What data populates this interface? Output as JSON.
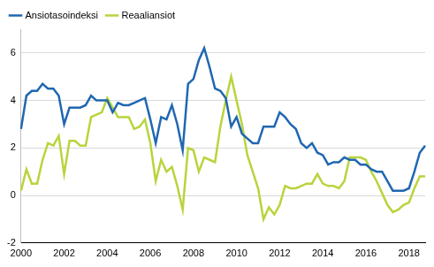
{
  "chart_data": {
    "type": "line",
    "categories": [
      "2000",
      null,
      null,
      null,
      null,
      null,
      null,
      null,
      "2002",
      null,
      null,
      null,
      null,
      null,
      null,
      null,
      "2004",
      null,
      null,
      null,
      null,
      null,
      null,
      null,
      "2006",
      null,
      null,
      null,
      null,
      null,
      null,
      null,
      "2008",
      null,
      null,
      null,
      null,
      null,
      null,
      null,
      "2010",
      null,
      null,
      null,
      null,
      null,
      null,
      null,
      "2012",
      null,
      null,
      null,
      null,
      null,
      null,
      null,
      "2014",
      null,
      null,
      null,
      null,
      null,
      null,
      null,
      "2016",
      null,
      null,
      null,
      null,
      null,
      null,
      null,
      "2018",
      null,
      null,
      null
    ],
    "series": [
      {
        "name": "Ansiotasoindeksi",
        "color": "#1f67b1",
        "values": [
          2.8,
          4.2,
          4.4,
          4.4,
          4.7,
          4.5,
          4.5,
          4.2,
          3.0,
          3.7,
          3.7,
          3.7,
          3.8,
          4.2,
          4.0,
          4.0,
          4.0,
          3.5,
          3.9,
          3.8,
          3.8,
          3.9,
          4.0,
          4.1,
          3.2,
          2.2,
          3.3,
          3.2,
          3.8,
          3.0,
          1.9,
          4.7,
          4.9,
          5.7,
          6.2,
          5.4,
          4.5,
          4.4,
          4.1,
          2.9,
          3.3,
          2.6,
          2.4,
          2.2,
          2.2,
          2.9,
          2.9,
          2.9,
          3.5,
          3.3,
          3.0,
          2.8,
          2.2,
          2.0,
          2.2,
          1.8,
          1.7,
          1.3,
          1.4,
          1.4,
          1.6,
          1.5,
          1.5,
          1.3,
          1.3,
          1.1,
          1.0,
          1.0,
          0.6,
          0.2,
          0.2,
          0.2,
          0.3,
          1.0,
          1.8,
          2.1
        ]
      },
      {
        "name": "Reaaliansiot",
        "color": "#b8d43c",
        "values": [
          0.2,
          1.1,
          0.5,
          0.5,
          1.5,
          2.2,
          2.1,
          2.5,
          0.9,
          2.3,
          2.3,
          2.1,
          2.1,
          3.3,
          3.4,
          3.5,
          4.1,
          3.7,
          3.3,
          3.3,
          3.3,
          2.8,
          2.9,
          3.2,
          2.2,
          0.6,
          1.5,
          1.0,
          1.2,
          0.4,
          -0.6,
          2.0,
          1.9,
          1.0,
          1.6,
          1.5,
          1.4,
          2.9,
          4.0,
          5.0,
          4.0,
          3.0,
          1.7,
          1.0,
          0.3,
          -1.0,
          -0.5,
          -0.8,
          -0.4,
          0.4,
          0.3,
          0.3,
          0.4,
          0.5,
          0.5,
          0.9,
          0.5,
          0.4,
          0.4,
          0.3,
          0.6,
          1.6,
          1.6,
          1.6,
          1.5,
          1.0,
          0.6,
          0.1,
          -0.4,
          -0.7,
          -0.6,
          -0.4,
          -0.3,
          0.3,
          0.8,
          0.8
        ]
      }
    ],
    "ylim": [
      -2,
      7
    ],
    "yticks": [
      -2,
      0,
      2,
      4,
      6
    ],
    "grid": true,
    "legend": "top-left"
  }
}
